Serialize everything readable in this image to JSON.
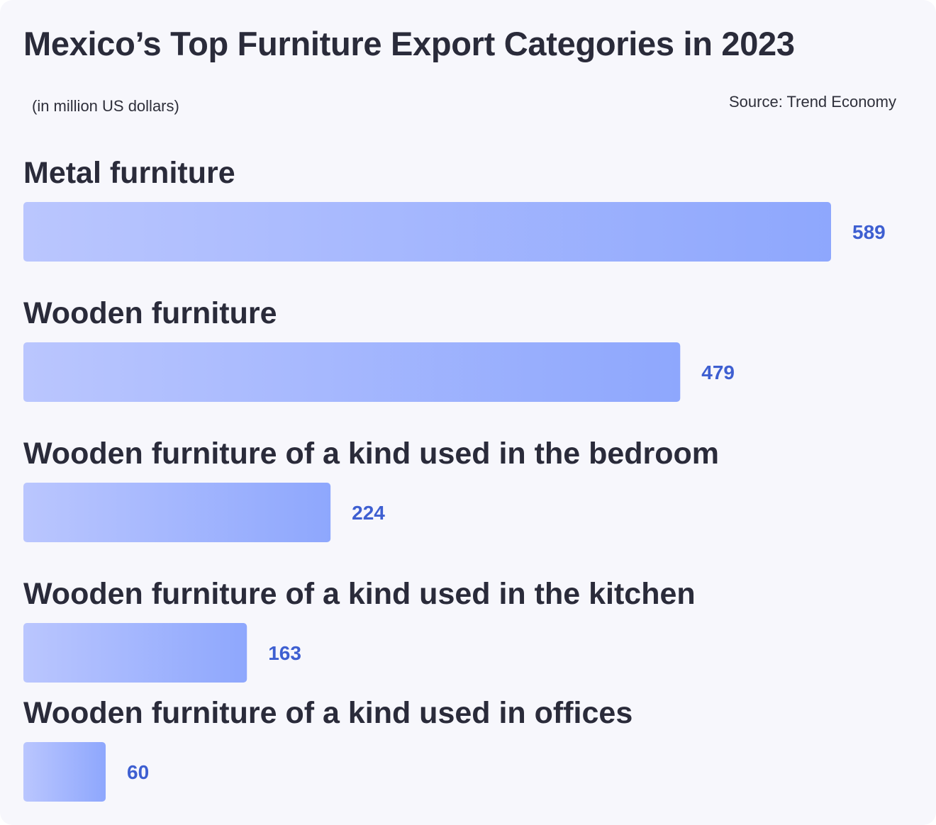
{
  "chart_data": {
    "type": "bar",
    "orientation": "horizontal",
    "title": "Mexico’s Top Furniture Export Categories in 2023",
    "subtitle": "(in million US dollars)",
    "source": "Source: Trend Economy",
    "categories": [
      "Metal furniture",
      "Wooden furniture",
      "Wooden furniture of a kind used in the bedroom",
      "Wooden furniture of a kind used in the kitchen",
      "Wooden furniture of a kind used in offices"
    ],
    "values": [
      589,
      479,
      224,
      163,
      60
    ],
    "value_labels": [
      "589",
      "479",
      "224",
      "163",
      "60"
    ],
    "xlim": [
      0,
      589
    ],
    "grid": false,
    "legend": "none"
  },
  "colors": {
    "bar_gradient_start": "#bac6fe",
    "bar_gradient_end": "#8ea7fd",
    "value_label": "#3e5fd1",
    "text": "#2a2b3a",
    "background": "#f7f7fc"
  }
}
